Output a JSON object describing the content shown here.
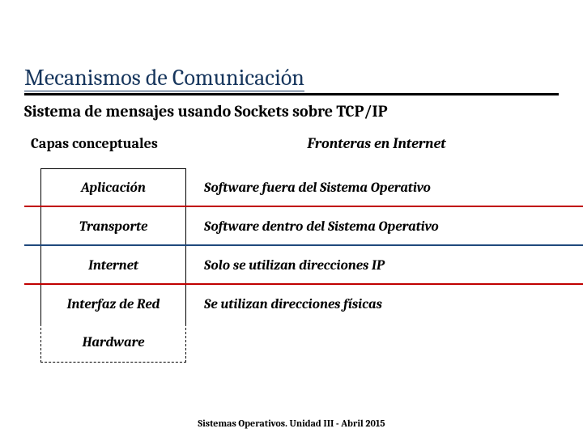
{
  "title": "Mecanismos de Comunicación",
  "subtitle": "Sistema de mensajes usando Sockets sobre TCP/IP",
  "headers": {
    "left": "Capas conceptuales",
    "right": "Fronteras en Internet"
  },
  "rows": [
    {
      "layer": "Aplicación",
      "desc": "Software fuera del Sistema Operativo",
      "rule_color": "#c00000",
      "box": "solid-top"
    },
    {
      "layer": "Transporte",
      "desc": "Software  dentro del Sistema Operativo",
      "rule_color": "#1f497d",
      "box": "solid"
    },
    {
      "layer": "Internet",
      "desc": "Solo se utilizan direcciones IP",
      "rule_color": "#c00000",
      "box": "solid"
    },
    {
      "layer": "Interfaz de Red",
      "desc": "Se utilizan direcciones físicas",
      "rule_color": "",
      "box": "solid"
    },
    {
      "layer": "Hardware",
      "desc": "",
      "rule_color": "",
      "box": "dashed"
    }
  ],
  "footer": "Sistemas Operativos. Unidad III - Abril 2015",
  "colors": {
    "title": "#17365d",
    "rule_red": "#c00000",
    "rule_blue": "#1f497d"
  }
}
